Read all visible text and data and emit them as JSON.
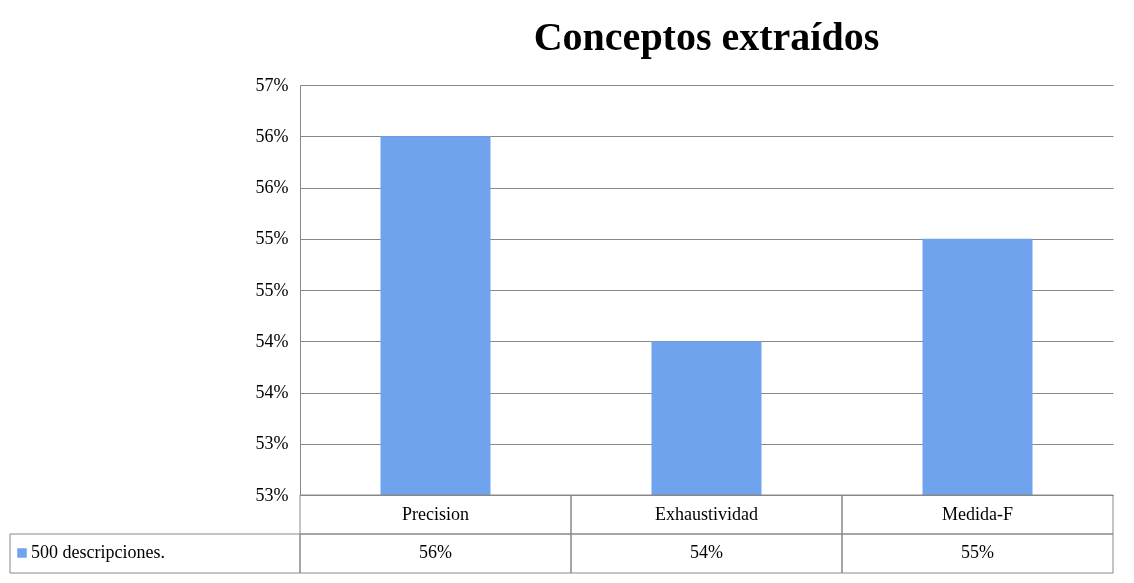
{
  "chart_data": {
    "type": "bar",
    "title": "Conceptos extraídos",
    "categories": [
      "Precision",
      "Exhaustividad",
      "Medida-F"
    ],
    "series": [
      {
        "name": "500 descripciones.",
        "color": "#6fa3ee",
        "values": [
          56,
          54,
          55
        ],
        "value_labels": [
          "56%",
          "54%",
          "55%"
        ]
      }
    ],
    "ylim": [
      52.5,
      56.5
    ],
    "yticks": [
      {
        "value": 52.5,
        "label": "53%"
      },
      {
        "value": 53,
        "label": "53%"
      },
      {
        "value": 53.5,
        "label": "54%"
      },
      {
        "value": 54,
        "label": "54%"
      },
      {
        "value": 54.5,
        "label": "55%"
      },
      {
        "value": 55,
        "label": "55%"
      },
      {
        "value": 55.5,
        "label": "56%"
      },
      {
        "value": 56,
        "label": "56%"
      },
      {
        "value": 56.5,
        "label": "57%"
      }
    ],
    "grid": "y",
    "legend": "bottom"
  }
}
